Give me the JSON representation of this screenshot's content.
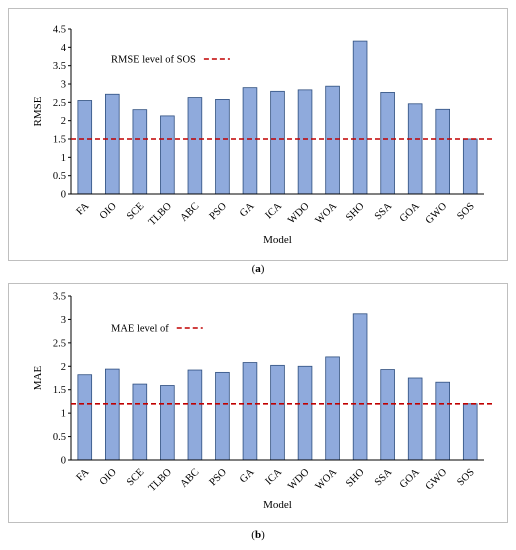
{
  "colors": {
    "bar_fill": "#8faadc",
    "bar_stroke": "#2f4f7f",
    "reference_line": "#c00000"
  },
  "chart_data": [
    {
      "type": "bar",
      "panel": "a",
      "caption": "(a)",
      "ylabel": "RMSE",
      "xlabel": "Model",
      "ylim": [
        0,
        4.5
      ],
      "ytick_step": 0.5,
      "yticks": [
        "0",
        "0.5",
        "1",
        "1.5",
        "2",
        "2.5",
        "3",
        "3.5",
        "4",
        "4.5"
      ],
      "categories": [
        "FA",
        "OIO",
        "SCE",
        "TLBO",
        "ABC",
        "PSO",
        "GA",
        "ICA",
        "WDO",
        "WOA",
        "SHO",
        "SSA",
        "GOA",
        "GWO",
        "SOS"
      ],
      "values": [
        2.55,
        2.72,
        2.3,
        2.13,
        2.63,
        2.58,
        2.9,
        2.8,
        2.84,
        2.94,
        4.17,
        2.77,
        2.46,
        2.31,
        1.5
      ],
      "reference": {
        "label": "RMSE level of SOS",
        "value": 1.5,
        "style": "dashed"
      },
      "legend_position": "top-left",
      "grid": false
    },
    {
      "type": "bar",
      "panel": "b",
      "caption": "(b)",
      "ylabel": "MAE",
      "xlabel": "Model",
      "ylim": [
        0,
        3.5
      ],
      "ytick_step": 0.5,
      "yticks": [
        "0",
        "0.5",
        "1",
        "1.5",
        "2",
        "2.5",
        "3",
        "3.5"
      ],
      "categories": [
        "FA",
        "OIO",
        "SCE",
        "TLBO",
        "ABC",
        "PSO",
        "GA",
        "ICA",
        "WDO",
        "WOA",
        "SHO",
        "SSA",
        "GOA",
        "GWO",
        "SOS"
      ],
      "values": [
        1.82,
        1.94,
        1.62,
        1.59,
        1.92,
        1.87,
        2.08,
        2.02,
        2.0,
        2.2,
        3.12,
        1.93,
        1.75,
        1.66,
        1.2
      ],
      "reference": {
        "label": "MAE level of",
        "value": 1.2,
        "style": "dashed"
      },
      "legend_position": "top-left",
      "grid": false
    }
  ]
}
